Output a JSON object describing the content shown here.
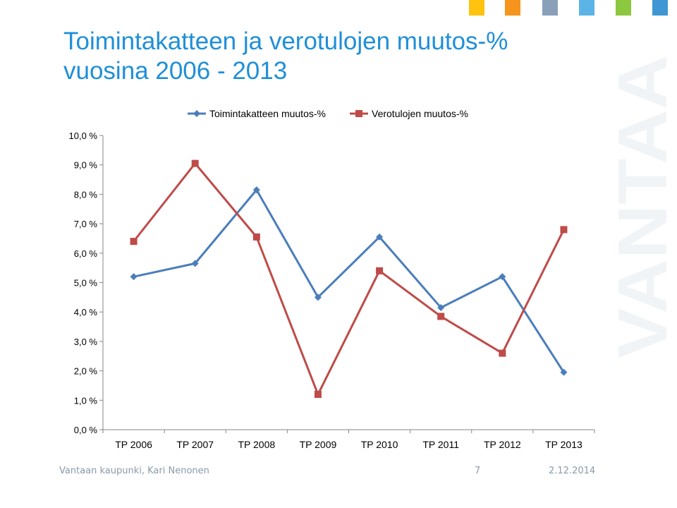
{
  "slide": {
    "title_line1": "Toimintakatteen ja verotulojen muutos-%",
    "title_line2": "vuosina 2006 - 2013",
    "watermark": "VANTAA",
    "accent_squares": [
      "#ffc20e",
      "#f7941d",
      "#8aa0b8",
      "#5bb4e5",
      "#8dc63f",
      "#3e97d3"
    ]
  },
  "footer": {
    "left": "Vantaan kaupunki, Kari Nenonen",
    "page": "7",
    "date": "2.12.2014"
  },
  "chart_data": {
    "type": "line",
    "categories": [
      "TP 2006",
      "TP 2007",
      "TP 2008",
      "TP 2009",
      "TP 2010",
      "TP 2011",
      "TP 2012",
      "TP 2013"
    ],
    "series": [
      {
        "name": "Toimintakatteen muutos-%",
        "color": "#4a7ebb",
        "marker": "diamond",
        "values": [
          5.2,
          5.65,
          8.15,
          4.5,
          6.55,
          4.15,
          5.2,
          1.95
        ]
      },
      {
        "name": "Verotulojen muutos-%",
        "color": "#be4b48",
        "marker": "square",
        "values": [
          6.4,
          9.05,
          6.55,
          1.2,
          5.4,
          3.85,
          2.6,
          6.8
        ]
      }
    ],
    "yticks": [
      "0,0 %",
      "1,0 %",
      "2,0 %",
      "3,0 %",
      "4,0 %",
      "5,0 %",
      "6,0 %",
      "7,0 %",
      "8,0 %",
      "9,0 %",
      "10,0 %"
    ],
    "ylim": [
      0,
      10
    ],
    "legend_position": "top",
    "grid": false
  }
}
